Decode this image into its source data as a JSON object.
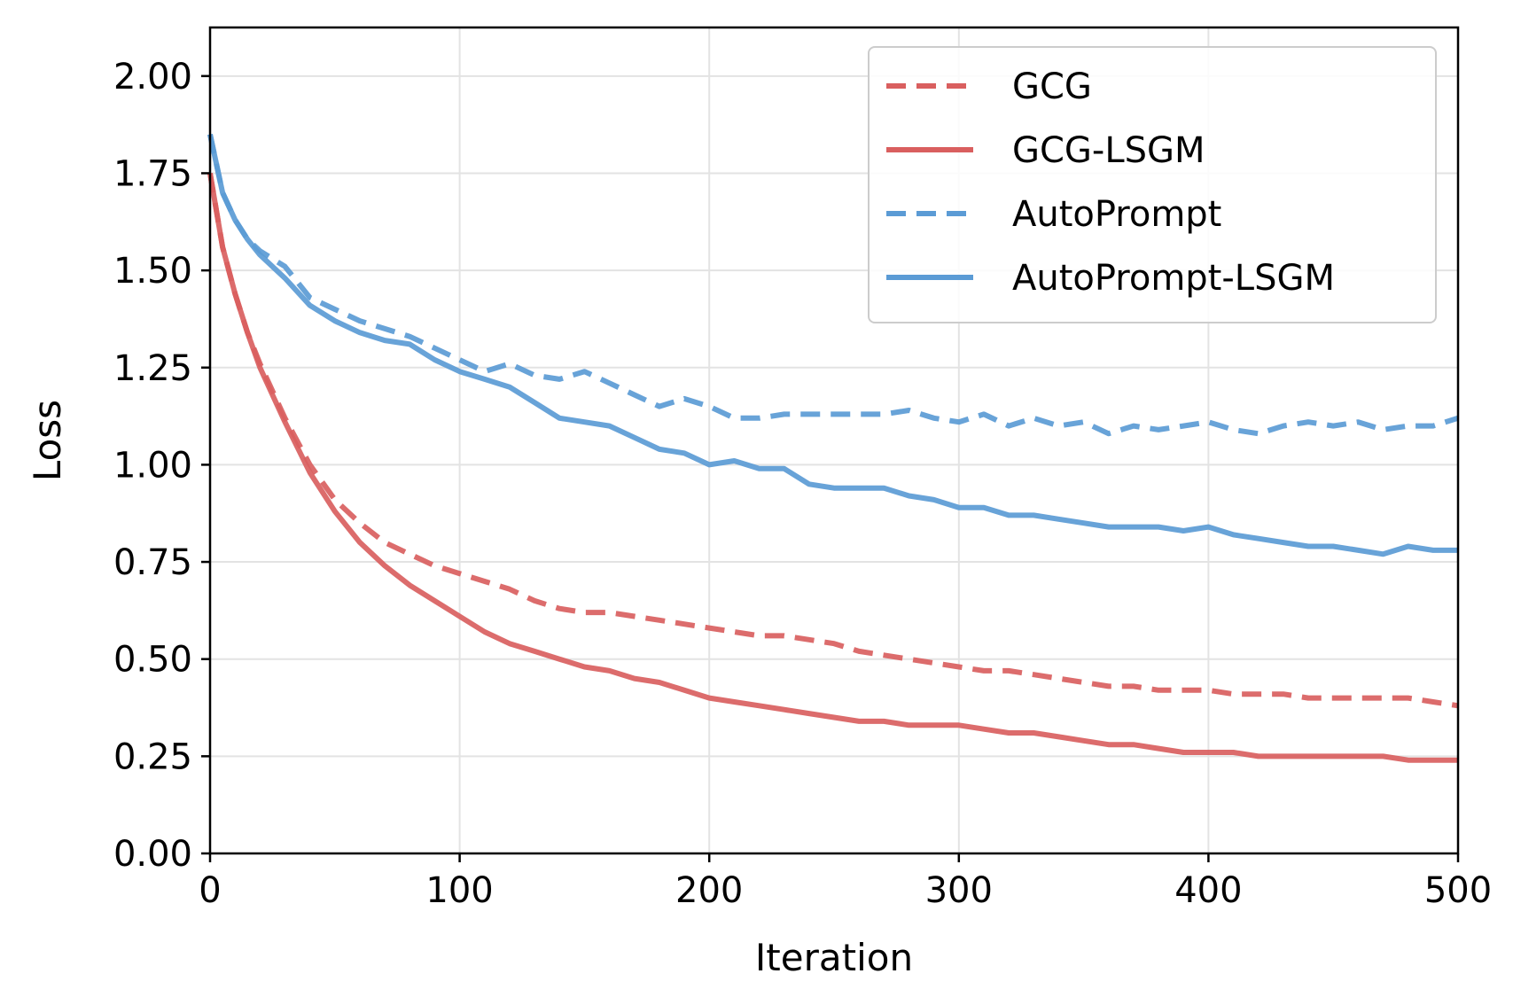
{
  "chart_data": {
    "type": "line",
    "title": "",
    "xlabel": "Iteration",
    "ylabel": "Loss",
    "xlim": [
      0,
      500
    ],
    "ylim": [
      0,
      2.125
    ],
    "xticks": [
      "0",
      "100",
      "200",
      "300",
      "400",
      "500"
    ],
    "yticks": [
      "0.00",
      "0.25",
      "0.50",
      "0.75",
      "1.00",
      "1.25",
      "1.50",
      "1.75",
      "2.00"
    ],
    "grid": true,
    "legend_position": "top-right",
    "x": [
      0,
      5,
      10,
      15,
      20,
      30,
      40,
      50,
      60,
      70,
      80,
      90,
      100,
      110,
      120,
      130,
      140,
      150,
      160,
      170,
      180,
      190,
      200,
      210,
      220,
      230,
      240,
      250,
      260,
      270,
      280,
      290,
      300,
      310,
      320,
      330,
      340,
      350,
      360,
      370,
      380,
      390,
      400,
      410,
      420,
      430,
      440,
      450,
      460,
      470,
      480,
      490,
      500
    ],
    "series": [
      {
        "name": "GCG",
        "color": "#d95f5f",
        "dash": true,
        "values": [
          1.75,
          1.56,
          1.44,
          1.34,
          1.26,
          1.12,
          1.0,
          0.91,
          0.85,
          0.8,
          0.77,
          0.74,
          0.72,
          0.7,
          0.68,
          0.65,
          0.63,
          0.62,
          0.62,
          0.61,
          0.6,
          0.59,
          0.58,
          0.57,
          0.56,
          0.56,
          0.55,
          0.54,
          0.52,
          0.51,
          0.5,
          0.49,
          0.48,
          0.47,
          0.47,
          0.46,
          0.45,
          0.44,
          0.43,
          0.43,
          0.42,
          0.42,
          0.42,
          0.41,
          0.41,
          0.41,
          0.4,
          0.4,
          0.4,
          0.4,
          0.4,
          0.39,
          0.38
        ]
      },
      {
        "name": "GCG-LSGM",
        "color": "#d95f5f",
        "dash": false,
        "values": [
          1.75,
          1.56,
          1.44,
          1.34,
          1.25,
          1.11,
          0.98,
          0.88,
          0.8,
          0.74,
          0.69,
          0.65,
          0.61,
          0.57,
          0.54,
          0.52,
          0.5,
          0.48,
          0.47,
          0.45,
          0.44,
          0.42,
          0.4,
          0.39,
          0.38,
          0.37,
          0.36,
          0.35,
          0.34,
          0.34,
          0.33,
          0.33,
          0.33,
          0.32,
          0.31,
          0.31,
          0.3,
          0.29,
          0.28,
          0.28,
          0.27,
          0.26,
          0.26,
          0.26,
          0.25,
          0.25,
          0.25,
          0.25,
          0.25,
          0.25,
          0.24,
          0.24,
          0.24
        ]
      },
      {
        "name": "AutoPrompt",
        "color": "#5b9bd5",
        "dash": true,
        "values": [
          1.85,
          1.7,
          1.63,
          1.58,
          1.55,
          1.51,
          1.43,
          1.4,
          1.37,
          1.35,
          1.33,
          1.3,
          1.27,
          1.24,
          1.26,
          1.23,
          1.22,
          1.24,
          1.21,
          1.18,
          1.15,
          1.17,
          1.15,
          1.12,
          1.12,
          1.13,
          1.13,
          1.13,
          1.13,
          1.13,
          1.14,
          1.12,
          1.11,
          1.13,
          1.1,
          1.12,
          1.1,
          1.11,
          1.08,
          1.1,
          1.09,
          1.1,
          1.11,
          1.09,
          1.08,
          1.1,
          1.11,
          1.1,
          1.11,
          1.09,
          1.1,
          1.1,
          1.12
        ]
      },
      {
        "name": "AutoPrompt-LSGM",
        "color": "#5b9bd5",
        "dash": false,
        "values": [
          1.85,
          1.7,
          1.63,
          1.58,
          1.54,
          1.48,
          1.41,
          1.37,
          1.34,
          1.32,
          1.31,
          1.27,
          1.24,
          1.22,
          1.2,
          1.16,
          1.12,
          1.11,
          1.1,
          1.07,
          1.04,
          1.03,
          1.0,
          1.01,
          0.99,
          0.99,
          0.95,
          0.94,
          0.94,
          0.94,
          0.92,
          0.91,
          0.89,
          0.89,
          0.87,
          0.87,
          0.86,
          0.85,
          0.84,
          0.84,
          0.84,
          0.83,
          0.84,
          0.82,
          0.81,
          0.8,
          0.79,
          0.79,
          0.78,
          0.77,
          0.79,
          0.78,
          0.78
        ]
      }
    ]
  }
}
